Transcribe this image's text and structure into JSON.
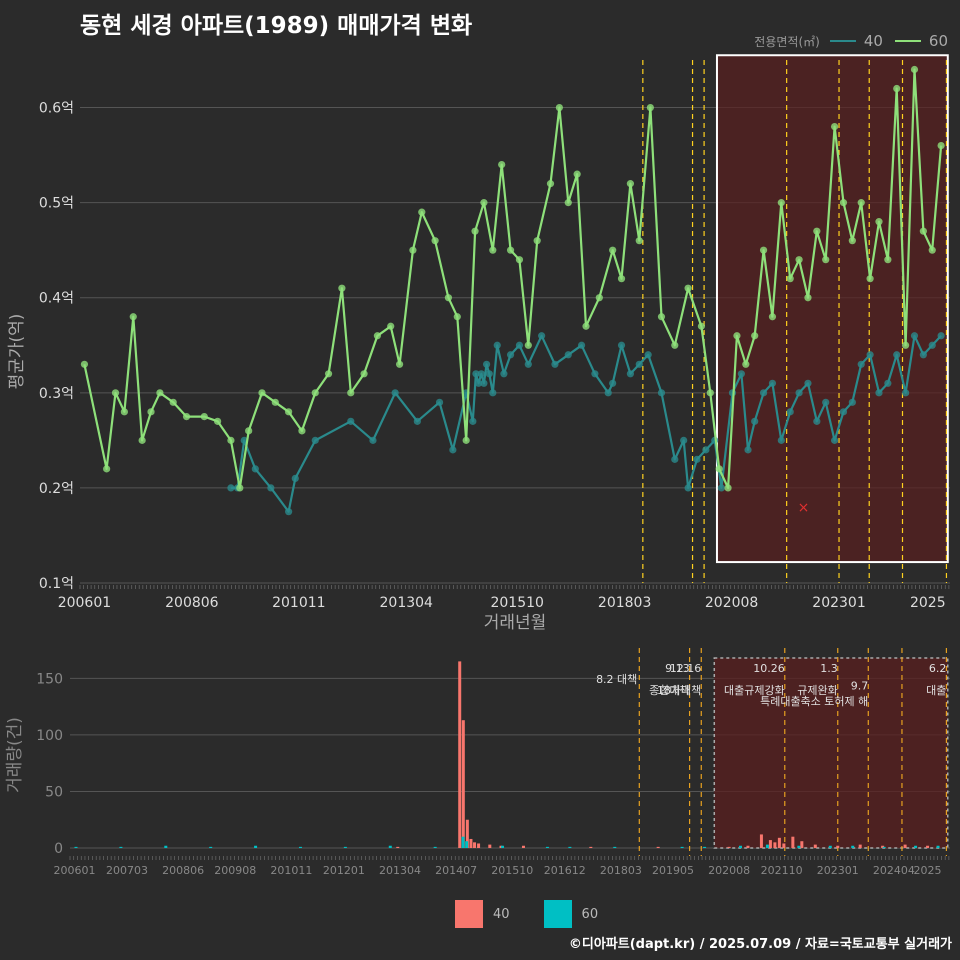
{
  "title": "동현 세경 아파트(1989) 매매가격 변화",
  "credit": "©디아파트(dapt.kr) / 2025.07.09 / 자료=국토교통부 실거래가",
  "colors": {
    "bg": "#2b2b2b",
    "s40_top": "#2a8a8c",
    "s60_top": "#8ee07a",
    "s40_bot": "#f8766d",
    "s60_bot": "#00bfc4",
    "policy": "#ffd21f",
    "highlight": "#5a1f1f"
  },
  "legend_top": {
    "title": "전용면적(㎡)",
    "items": [
      {
        "label": "40",
        "color": "#2a8a8c"
      },
      {
        "label": "60",
        "color": "#8ee07a"
      }
    ]
  },
  "legend_bottom": {
    "items": [
      {
        "label": "40",
        "color": "#f8766d"
      },
      {
        "label": "60",
        "color": "#00bfc4"
      }
    ]
  },
  "chart_data": [
    {
      "type": "line",
      "panel": "price",
      "xlabel": "거래년월",
      "ylabel": "평균가(억)",
      "ylim": [
        0.1,
        0.65
      ],
      "yticks": [
        "0.1억",
        "0.2억",
        "0.3억",
        "0.4억",
        "0.5억",
        "0.6억"
      ],
      "yticks_values": [
        0.1,
        0.2,
        0.3,
        0.4,
        0.5,
        0.6
      ],
      "xticks": [
        "200601",
        "200806",
        "201011",
        "201304",
        "201510",
        "201803",
        "202008",
        "202301",
        "2025"
      ],
      "xticks_pos": [
        2006.0,
        2008.42,
        2010.83,
        2013.25,
        2015.75,
        2018.17,
        2020.58,
        2023.0,
        2025.0
      ],
      "xlim": [
        2005.9,
        2025.5
      ],
      "policy_lines": [
        2018.58,
        2019.7,
        2019.96,
        2021.82,
        2023.0,
        2023.68,
        2024.43,
        2025.42
      ],
      "highlight_range": [
        2020.25,
        2025.45
      ],
      "highlight_ylim": [
        0.122,
        0.655
      ],
      "series": [
        {
          "name": "40",
          "points": [
            [
              2009.3,
              0.2
            ],
            [
              2009.45,
              0.2
            ],
            [
              2009.6,
              0.25
            ],
            [
              2009.85,
              0.22
            ],
            [
              2010.2,
              0.2
            ],
            [
              2010.6,
              0.175
            ],
            [
              2010.75,
              0.21
            ],
            [
              2011.2,
              0.25
            ],
            [
              2012.0,
              0.27
            ],
            [
              2012.5,
              0.25
            ],
            [
              2013.0,
              0.3
            ],
            [
              2013.5,
              0.27
            ],
            [
              2014.0,
              0.29
            ],
            [
              2014.3,
              0.24
            ],
            [
              2014.6,
              0.3
            ],
            [
              2014.75,
              0.27
            ],
            [
              2014.82,
              0.32
            ],
            [
              2014.88,
              0.31
            ],
            [
              2014.94,
              0.32
            ],
            [
              2015.0,
              0.31
            ],
            [
              2015.06,
              0.33
            ],
            [
              2015.12,
              0.32
            ],
            [
              2015.2,
              0.3
            ],
            [
              2015.3,
              0.35
            ],
            [
              2015.45,
              0.32
            ],
            [
              2015.6,
              0.34
            ],
            [
              2015.8,
              0.35
            ],
            [
              2016.0,
              0.33
            ],
            [
              2016.3,
              0.36
            ],
            [
              2016.6,
              0.33
            ],
            [
              2016.9,
              0.34
            ],
            [
              2017.2,
              0.35
            ],
            [
              2017.5,
              0.32
            ],
            [
              2017.8,
              0.3
            ],
            [
              2017.9,
              0.31
            ],
            [
              2018.1,
              0.35
            ],
            [
              2018.3,
              0.32
            ],
            [
              2018.5,
              0.33
            ],
            [
              2018.7,
              0.34
            ],
            [
              2019.0,
              0.3
            ],
            [
              2019.3,
              0.23
            ],
            [
              2019.5,
              0.25
            ],
            [
              2019.6,
              0.2
            ],
            [
              2019.8,
              0.23
            ],
            [
              2020.0,
              0.24
            ],
            [
              2020.2,
              0.25
            ],
            [
              2020.35,
              0.2
            ],
            [
              2020.6,
              0.3
            ],
            [
              2020.8,
              0.32
            ],
            [
              2020.95,
              0.24
            ],
            [
              2021.1,
              0.27
            ],
            [
              2021.3,
              0.3
            ],
            [
              2021.5,
              0.31
            ],
            [
              2021.7,
              0.25
            ],
            [
              2021.9,
              0.28
            ],
            [
              2022.1,
              0.3
            ],
            [
              2022.3,
              0.31
            ],
            [
              2022.5,
              0.27
            ],
            [
              2022.7,
              0.29
            ],
            [
              2022.9,
              0.25
            ],
            [
              2023.1,
              0.28
            ],
            [
              2023.3,
              0.29
            ],
            [
              2023.5,
              0.33
            ],
            [
              2023.7,
              0.34
            ],
            [
              2023.9,
              0.3
            ],
            [
              2024.1,
              0.31
            ],
            [
              2024.3,
              0.34
            ],
            [
              2024.5,
              0.3
            ],
            [
              2024.7,
              0.36
            ],
            [
              2024.9,
              0.34
            ],
            [
              2025.1,
              0.35
            ],
            [
              2025.3,
              0.36
            ]
          ]
        },
        {
          "name": "60",
          "points": [
            [
              2006.0,
              0.33
            ],
            [
              2006.5,
              0.22
            ],
            [
              2006.7,
              0.3
            ],
            [
              2006.9,
              0.28
            ],
            [
              2007.1,
              0.38
            ],
            [
              2007.3,
              0.25
            ],
            [
              2007.5,
              0.28
            ],
            [
              2007.7,
              0.3
            ],
            [
              2008.0,
              0.29
            ],
            [
              2008.3,
              0.275
            ],
            [
              2008.7,
              0.275
            ],
            [
              2009.0,
              0.27
            ],
            [
              2009.3,
              0.25
            ],
            [
              2009.5,
              0.2
            ],
            [
              2009.7,
              0.26
            ],
            [
              2010.0,
              0.3
            ],
            [
              2010.3,
              0.29
            ],
            [
              2010.6,
              0.28
            ],
            [
              2010.9,
              0.26
            ],
            [
              2011.2,
              0.3
            ],
            [
              2011.5,
              0.32
            ],
            [
              2011.8,
              0.41
            ],
            [
              2012.0,
              0.3
            ],
            [
              2012.3,
              0.32
            ],
            [
              2012.6,
              0.36
            ],
            [
              2012.9,
              0.37
            ],
            [
              2013.1,
              0.33
            ],
            [
              2013.4,
              0.45
            ],
            [
              2013.6,
              0.49
            ],
            [
              2013.9,
              0.46
            ],
            [
              2014.2,
              0.4
            ],
            [
              2014.4,
              0.38
            ],
            [
              2014.6,
              0.25
            ],
            [
              2014.8,
              0.47
            ],
            [
              2015.0,
              0.5
            ],
            [
              2015.2,
              0.45
            ],
            [
              2015.4,
              0.54
            ],
            [
              2015.6,
              0.45
            ],
            [
              2015.8,
              0.44
            ],
            [
              2016.0,
              0.35
            ],
            [
              2016.2,
              0.46
            ],
            [
              2016.5,
              0.52
            ],
            [
              2016.7,
              0.6
            ],
            [
              2016.9,
              0.5
            ],
            [
              2017.1,
              0.53
            ],
            [
              2017.3,
              0.37
            ],
            [
              2017.6,
              0.4
            ],
            [
              2017.9,
              0.45
            ],
            [
              2018.1,
              0.42
            ],
            [
              2018.3,
              0.52
            ],
            [
              2018.5,
              0.46
            ],
            [
              2018.75,
              0.6
            ],
            [
              2019.0,
              0.38
            ],
            [
              2019.3,
              0.35
            ],
            [
              2019.6,
              0.41
            ],
            [
              2019.9,
              0.37
            ],
            [
              2020.1,
              0.3
            ],
            [
              2020.3,
              0.22
            ],
            [
              2020.5,
              0.2
            ],
            [
              2020.7,
              0.36
            ],
            [
              2020.9,
              0.33
            ],
            [
              2021.1,
              0.36
            ],
            [
              2021.3,
              0.45
            ],
            [
              2021.5,
              0.38
            ],
            [
              2021.7,
              0.5
            ],
            [
              2021.9,
              0.42
            ],
            [
              2022.1,
              0.44
            ],
            [
              2022.3,
              0.4
            ],
            [
              2022.5,
              0.47
            ],
            [
              2022.7,
              0.44
            ],
            [
              2022.9,
              0.58
            ],
            [
              2023.1,
              0.5
            ],
            [
              2023.3,
              0.46
            ],
            [
              2023.5,
              0.5
            ],
            [
              2023.7,
              0.42
            ],
            [
              2023.9,
              0.48
            ],
            [
              2024.1,
              0.44
            ],
            [
              2024.3,
              0.62
            ],
            [
              2024.5,
              0.35
            ],
            [
              2024.7,
              0.64
            ],
            [
              2024.9,
              0.47
            ],
            [
              2025.1,
              0.45
            ],
            [
              2025.3,
              0.56
            ]
          ]
        }
      ],
      "annotations": [
        {
          "text": "×",
          "x": 2022.2,
          "y": 0.18,
          "color": "#e03030"
        }
      ]
    },
    {
      "type": "bar",
      "panel": "volume",
      "ylabel": "거래량(건)",
      "ylim": [
        0,
        168
      ],
      "yticks_values": [
        0,
        50,
        100,
        150
      ],
      "yticks": [
        "0",
        "50",
        "100",
        "150"
      ],
      "xticks": [
        "200601",
        "200703",
        "200806",
        "200908",
        "201011",
        "201201",
        "201304",
        "201407",
        "201510",
        "201612",
        "201803",
        "201905",
        "202008",
        "202110",
        "202301",
        "202404",
        "2025"
      ],
      "xticks_pos": [
        2006.0,
        2007.17,
        2008.42,
        2009.58,
        2010.83,
        2012.0,
        2013.25,
        2014.5,
        2015.75,
        2016.92,
        2018.17,
        2019.33,
        2020.58,
        2021.75,
        2023.0,
        2024.25,
        2025.0
      ],
      "xlim": [
        2005.9,
        2025.5
      ],
      "policy_lines": [
        2018.58,
        2019.7,
        2019.96,
        2021.82,
        2023.0,
        2023.68,
        2024.43,
        2025.42
      ],
      "highlight_range": [
        2020.25,
        2025.45
      ],
      "policy_labels": [
        {
          "text": "8.2 대책",
          "x": 2018.58,
          "row": 1
        },
        {
          "text": "9.13",
          "x": 2019.7,
          "row": 0
        },
        {
          "text": "종합대책",
          "x": 2019.7,
          "row": 2
        },
        {
          "text": "12.16",
          "x": 2019.96,
          "row": 0
        },
        {
          "text": "18차대책",
          "x": 2019.96,
          "row": 2
        },
        {
          "text": "10.26",
          "x": 2021.82,
          "row": 0
        },
        {
          "text": "대출규제강화",
          "x": 2021.82,
          "row": 2
        },
        {
          "text": "1.3",
          "x": 2023.0,
          "row": 0
        },
        {
          "text": "규제완화",
          "x": 2023.0,
          "row": 2
        },
        {
          "text": "9.7",
          "x": 2023.68,
          "row": 1.6
        },
        {
          "text": "특례대출축소 토허제 해",
          "x": 2023.68,
          "row": 3
        },
        {
          "text": "6.2",
          "x": 2025.42,
          "row": 0
        },
        {
          "text": "대출",
          "x": 2025.42,
          "row": 2
        }
      ],
      "series": [
        {
          "name": "40",
          "bars": [
            [
              2014.58,
              165
            ],
            [
              2014.66,
              113
            ],
            [
              2014.75,
              25
            ],
            [
              2014.83,
              8
            ],
            [
              2014.91,
              5
            ],
            [
              2015.0,
              4
            ],
            [
              2015.25,
              3
            ],
            [
              2015.5,
              2
            ],
            [
              2016.0,
              2
            ],
            [
              2013.2,
              1
            ],
            [
              2017.5,
              1
            ],
            [
              2019.0,
              1
            ],
            [
              2020.58,
              1
            ],
            [
              2021.0,
              2
            ],
            [
              2021.3,
              12
            ],
            [
              2021.5,
              7
            ],
            [
              2021.6,
              5
            ],
            [
              2021.7,
              9
            ],
            [
              2021.8,
              4
            ],
            [
              2022.0,
              10
            ],
            [
              2022.2,
              6
            ],
            [
              2022.5,
              3
            ],
            [
              2023.0,
              2
            ],
            [
              2023.5,
              3
            ],
            [
              2024.0,
              2
            ],
            [
              2024.5,
              3
            ],
            [
              2025.0,
              2
            ]
          ]
        },
        {
          "name": "60",
          "bars": [
            [
              2006.0,
              1
            ],
            [
              2007.0,
              1
            ],
            [
              2008.0,
              2
            ],
            [
              2009.0,
              1
            ],
            [
              2010.0,
              2
            ],
            [
              2011.0,
              1
            ],
            [
              2012.0,
              1
            ],
            [
              2013.0,
              2
            ],
            [
              2014.0,
              1
            ],
            [
              2014.62,
              10
            ],
            [
              2014.7,
              6
            ],
            [
              2015.5,
              2
            ],
            [
              2016.5,
              1
            ],
            [
              2017.0,
              1
            ],
            [
              2018.0,
              1
            ],
            [
              2019.5,
              1
            ],
            [
              2020.0,
              1
            ],
            [
              2020.8,
              2
            ],
            [
              2021.4,
              3
            ],
            [
              2022.1,
              2
            ],
            [
              2022.8,
              2
            ],
            [
              2023.3,
              2
            ],
            [
              2024.0,
              1
            ],
            [
              2024.7,
              2
            ],
            [
              2025.2,
              2
            ]
          ]
        }
      ]
    }
  ]
}
